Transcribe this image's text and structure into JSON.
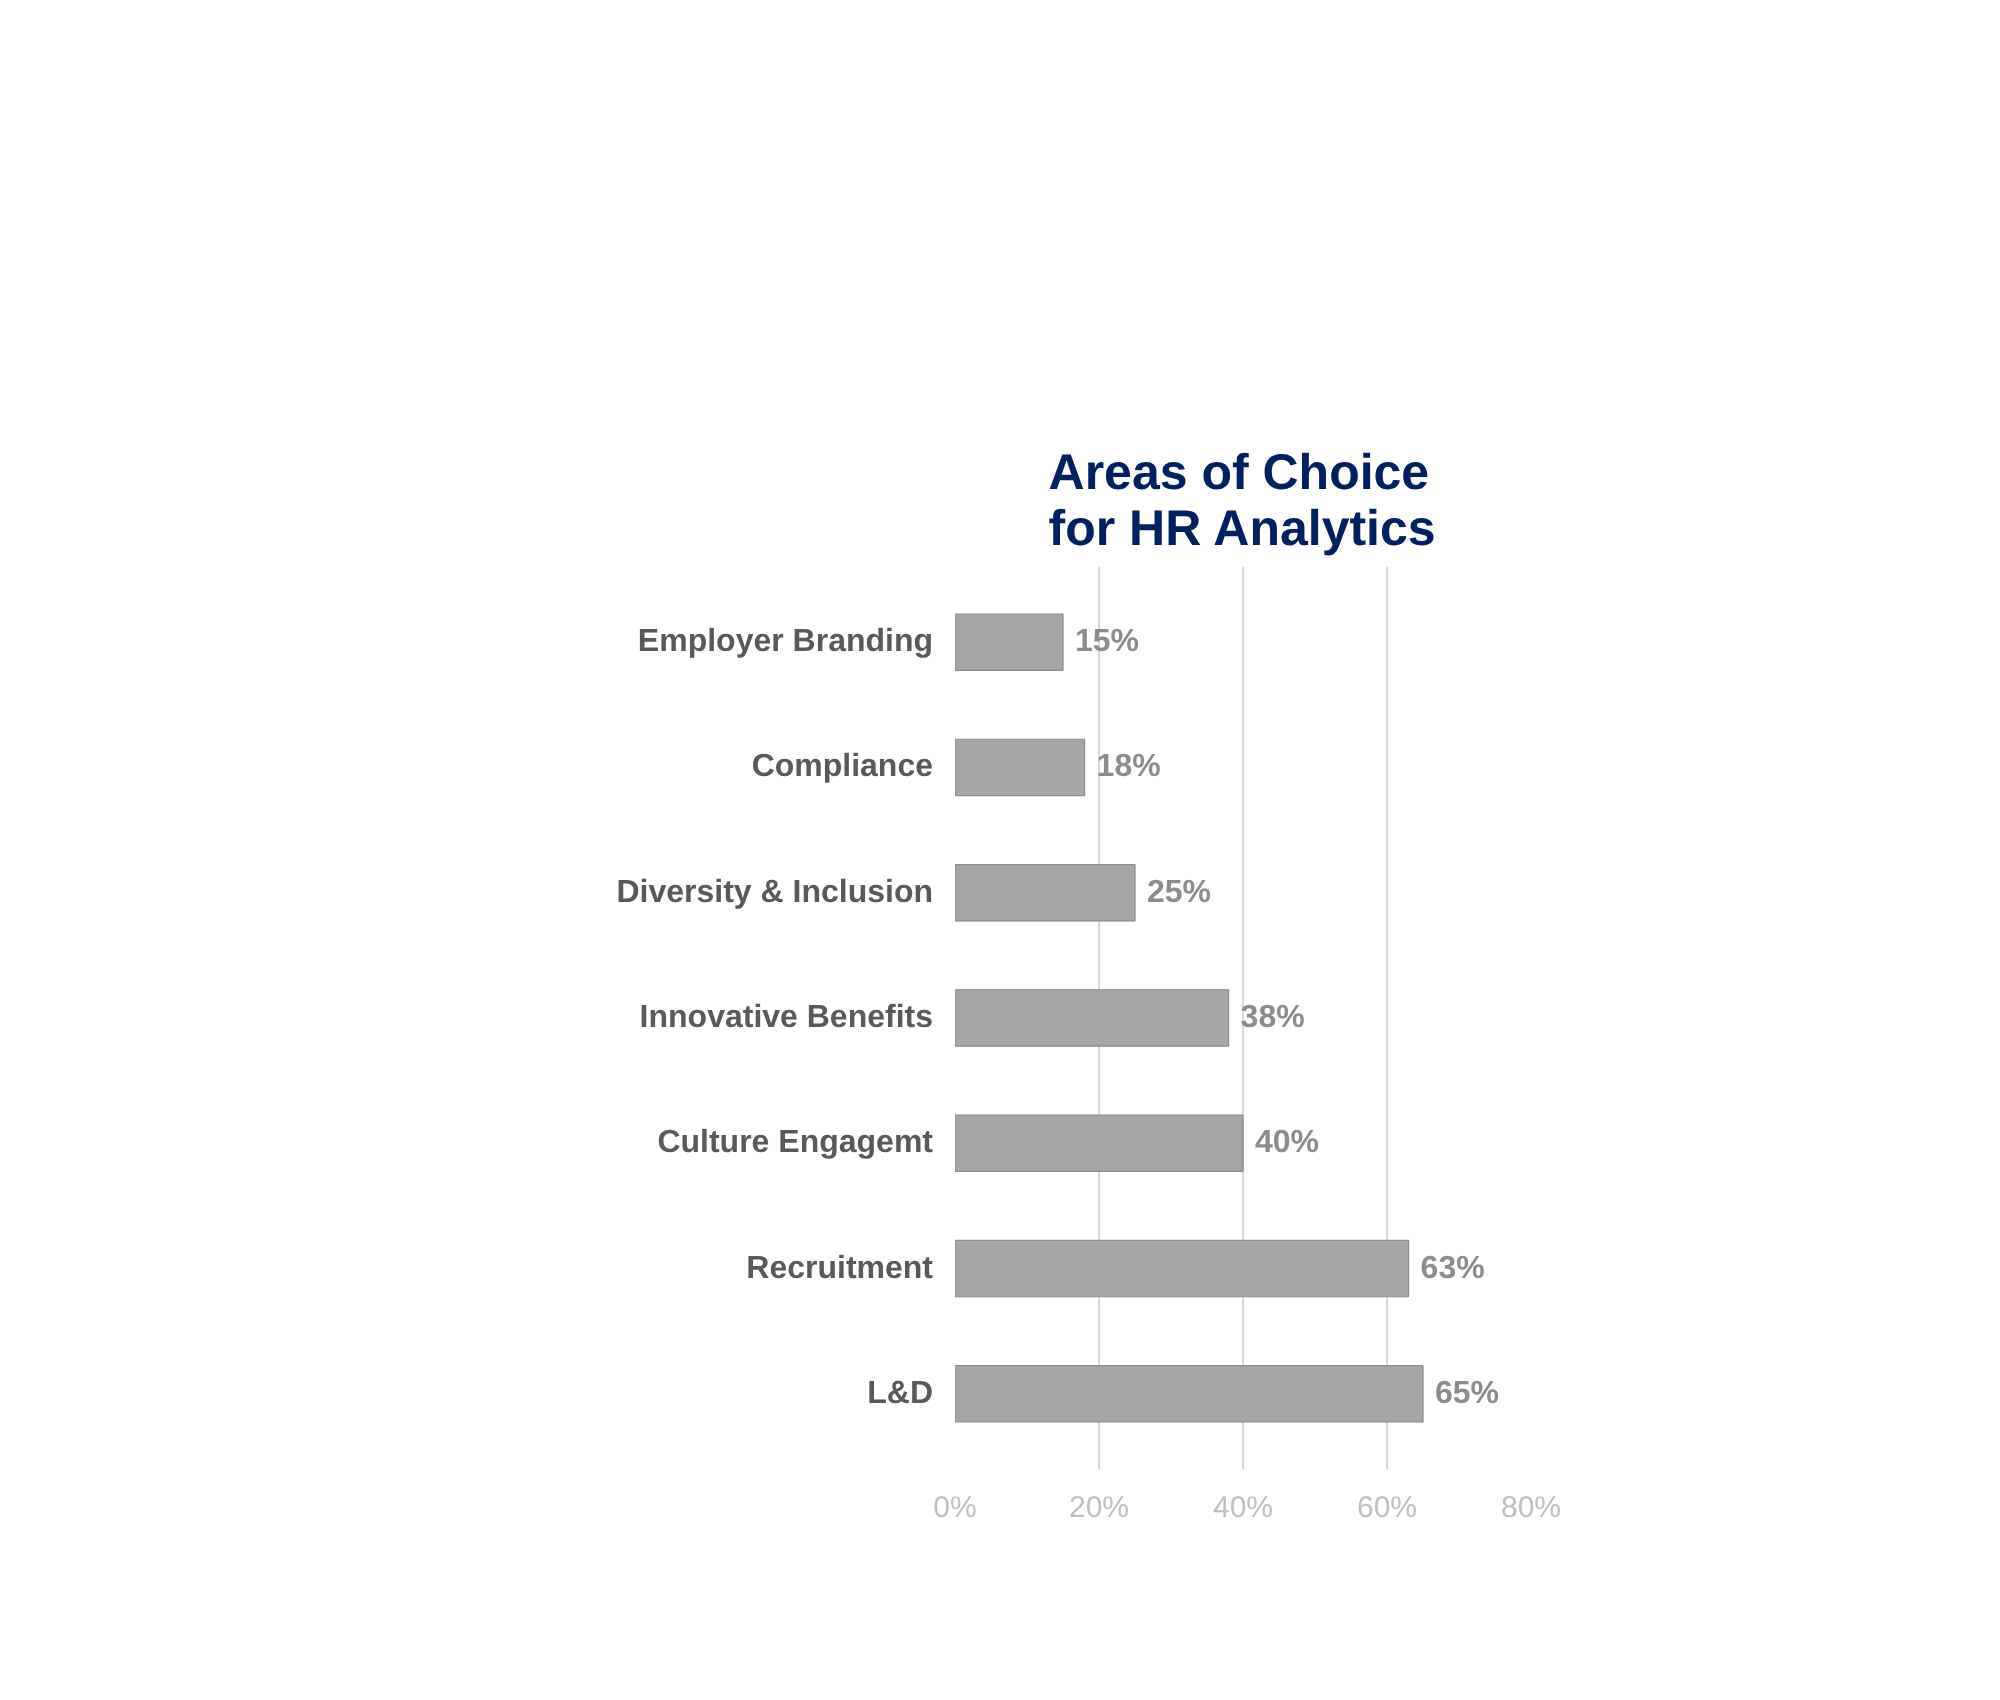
{
  "chart_data": {
    "type": "bar",
    "orientation": "horizontal",
    "title": "Areas of Choice\nfor HR Analytics",
    "categories": [
      "Employer Branding",
      "Compliance",
      "Diversity & Inclusion",
      "Innovative Benefits",
      "Culture Engagemt",
      "Recruitment",
      "L&D"
    ],
    "values": [
      15,
      18,
      25,
      38,
      40,
      63,
      65
    ],
    "value_labels": [
      "15%",
      "18%",
      "25%",
      "38%",
      "40%",
      "63%",
      "65%"
    ],
    "color": "#a6a6a6",
    "xlim": [
      0,
      80
    ],
    "xticks": [
      {
        "value": 0,
        "label": "0%"
      },
      {
        "value": 20,
        "label": "20%"
      },
      {
        "value": 40,
        "label": "40%"
      },
      {
        "value": 60,
        "label": "60%"
      },
      {
        "value": 80,
        "label": "80%"
      }
    ],
    "grid": "x"
  }
}
